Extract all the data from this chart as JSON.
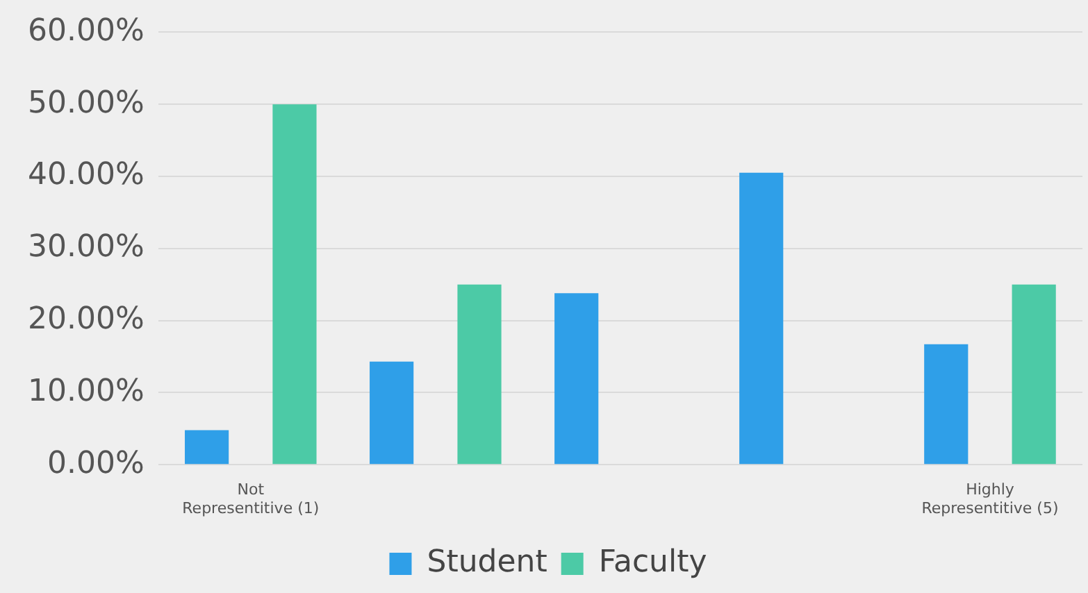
{
  "chart_data": {
    "type": "bar",
    "categories": [
      "Not Representitive (1)",
      null,
      null,
      null,
      "Highly Representitive (5)"
    ],
    "series": [
      {
        "name": "Student",
        "color": "#2f9fe8",
        "values": [
          4.8,
          14.3,
          23.8,
          40.5,
          16.7
        ]
      },
      {
        "name": "Faculty",
        "color": "#4ccaa6",
        "values": [
          50,
          25,
          0,
          0,
          25
        ]
      }
    ],
    "ylim": [
      0,
      60
    ],
    "yticks": [
      {
        "value": 0,
        "label": "0.00%"
      },
      {
        "value": 10,
        "label": "10.00%"
      },
      {
        "value": 20,
        "label": "20.00%"
      },
      {
        "value": 30,
        "label": "30.00%"
      },
      {
        "value": 40,
        "label": "40.00%"
      },
      {
        "value": 50,
        "label": "50.00%"
      },
      {
        "value": 60,
        "label": "60.00%"
      }
    ],
    "grid": "y",
    "legend": "bottom"
  }
}
